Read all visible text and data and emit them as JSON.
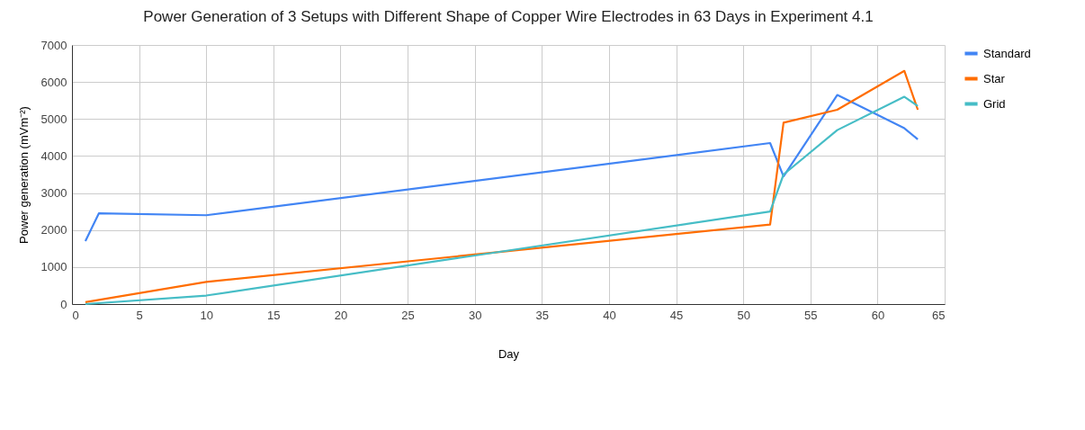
{
  "chart_data": {
    "type": "line",
    "title": "Power Generation of 3 Setups with Different Shape of Copper Wire Electrodes in 63 Days in Experiment 4.1",
    "xlabel": "Day",
    "ylabel": "Power generation (mVm⁻²)",
    "series": [
      {
        "name": "Standard",
        "color": "#4285f4",
        "x": [
          1,
          2,
          10,
          52,
          53,
          57,
          62,
          63
        ],
        "values": [
          1700,
          2450,
          2400,
          4350,
          3450,
          5650,
          4750,
          4450
        ]
      },
      {
        "name": "Star",
        "color": "#ff6d01",
        "x": [
          1,
          10,
          52,
          53,
          57,
          62,
          63
        ],
        "values": [
          50,
          600,
          2150,
          4900,
          5250,
          6300,
          5250
        ]
      },
      {
        "name": "Grid",
        "color": "#46bdc6",
        "x": [
          1,
          10,
          52,
          53,
          57,
          62,
          63
        ],
        "values": [
          0,
          230,
          2500,
          3500,
          4700,
          5600,
          5350
        ]
      }
    ],
    "xlim": [
      0,
      65
    ],
    "xticks": [
      0,
      5,
      10,
      15,
      20,
      25,
      30,
      35,
      40,
      45,
      50,
      55,
      60,
      65
    ],
    "ylim": [
      0,
      7000
    ],
    "yticks": [
      0,
      1000,
      2000,
      3000,
      4000,
      5000,
      6000,
      7000
    ],
    "grid": true,
    "legend": "top right",
    "marker": "none",
    "line_style": "solid"
  }
}
